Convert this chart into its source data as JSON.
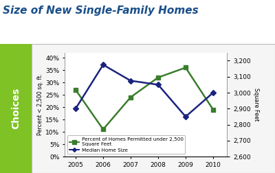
{
  "title": "Size of New Single-Family Homes",
  "title_color": "#1a4f8a",
  "title_fontsize": 11,
  "years": [
    2005,
    2006,
    2007,
    2008,
    2009,
    2010
  ],
  "green_pct": [
    27,
    11,
    24,
    32,
    36,
    19
  ],
  "blue_size": [
    2900,
    3175,
    3075,
    3050,
    2850,
    3000
  ],
  "green_color": "#3a7d2c",
  "blue_color": "#1a237e",
  "left_ylim": [
    0,
    42
  ],
  "left_yticks": [
    0,
    5,
    10,
    15,
    20,
    25,
    30,
    35,
    40
  ],
  "right_ylim": [
    2600,
    3250
  ],
  "right_yticks": [
    2600,
    2700,
    2800,
    2900,
    3000,
    3100,
    3200
  ],
  "left_ylabel": "Percent < 2,500 sq. ft.",
  "right_ylabel": "Square Feet",
  "sidebar_color": "#7ec225",
  "sidebar_text": "Choices",
  "legend_green": "Percent of Homes Permitted under 2,500\nSquare Feet",
  "legend_blue": "Median Home Size",
  "bg_color": "#ffffff",
  "plot_bg_color": "#ffffff",
  "chart_border_color": "#bbbbbb"
}
